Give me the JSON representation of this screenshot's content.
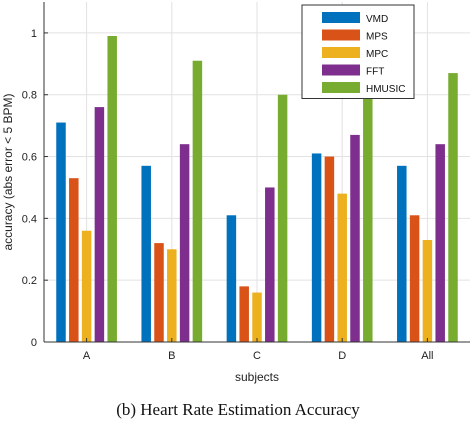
{
  "caption": "(b) Heart Rate Estimation Accuracy",
  "chart_data": {
    "type": "bar",
    "title": "",
    "xlabel": "subjects",
    "ylabel": "accuracy (abs error < 5 BPM)",
    "ylim": [
      0,
      1.1
    ],
    "yticks": [
      0,
      0.2,
      0.4,
      0.6,
      0.8,
      1
    ],
    "ytick_labels": [
      "0",
      "0.2",
      "0.4",
      "0.6",
      "0.8",
      "1"
    ],
    "grid": true,
    "legend_position": "top-right",
    "categories": [
      "A",
      "B",
      "C",
      "D",
      "All"
    ],
    "series": [
      {
        "name": "VMD",
        "color": "#0072BD",
        "values": [
          0.71,
          0.57,
          0.41,
          0.61,
          0.57
        ]
      },
      {
        "name": "MPS",
        "color": "#D95319",
        "values": [
          0.53,
          0.32,
          0.18,
          0.6,
          0.41
        ]
      },
      {
        "name": "MPC",
        "color": "#EDB120",
        "values": [
          0.36,
          0.3,
          0.16,
          0.48,
          0.33
        ]
      },
      {
        "name": "FFT",
        "color": "#7E2F8E",
        "values": [
          0.76,
          0.64,
          0.5,
          0.67,
          0.64
        ]
      },
      {
        "name": "HMUSIC",
        "color": "#77AC30",
        "values": [
          0.99,
          0.91,
          0.8,
          0.8,
          0.87
        ]
      }
    ]
  }
}
